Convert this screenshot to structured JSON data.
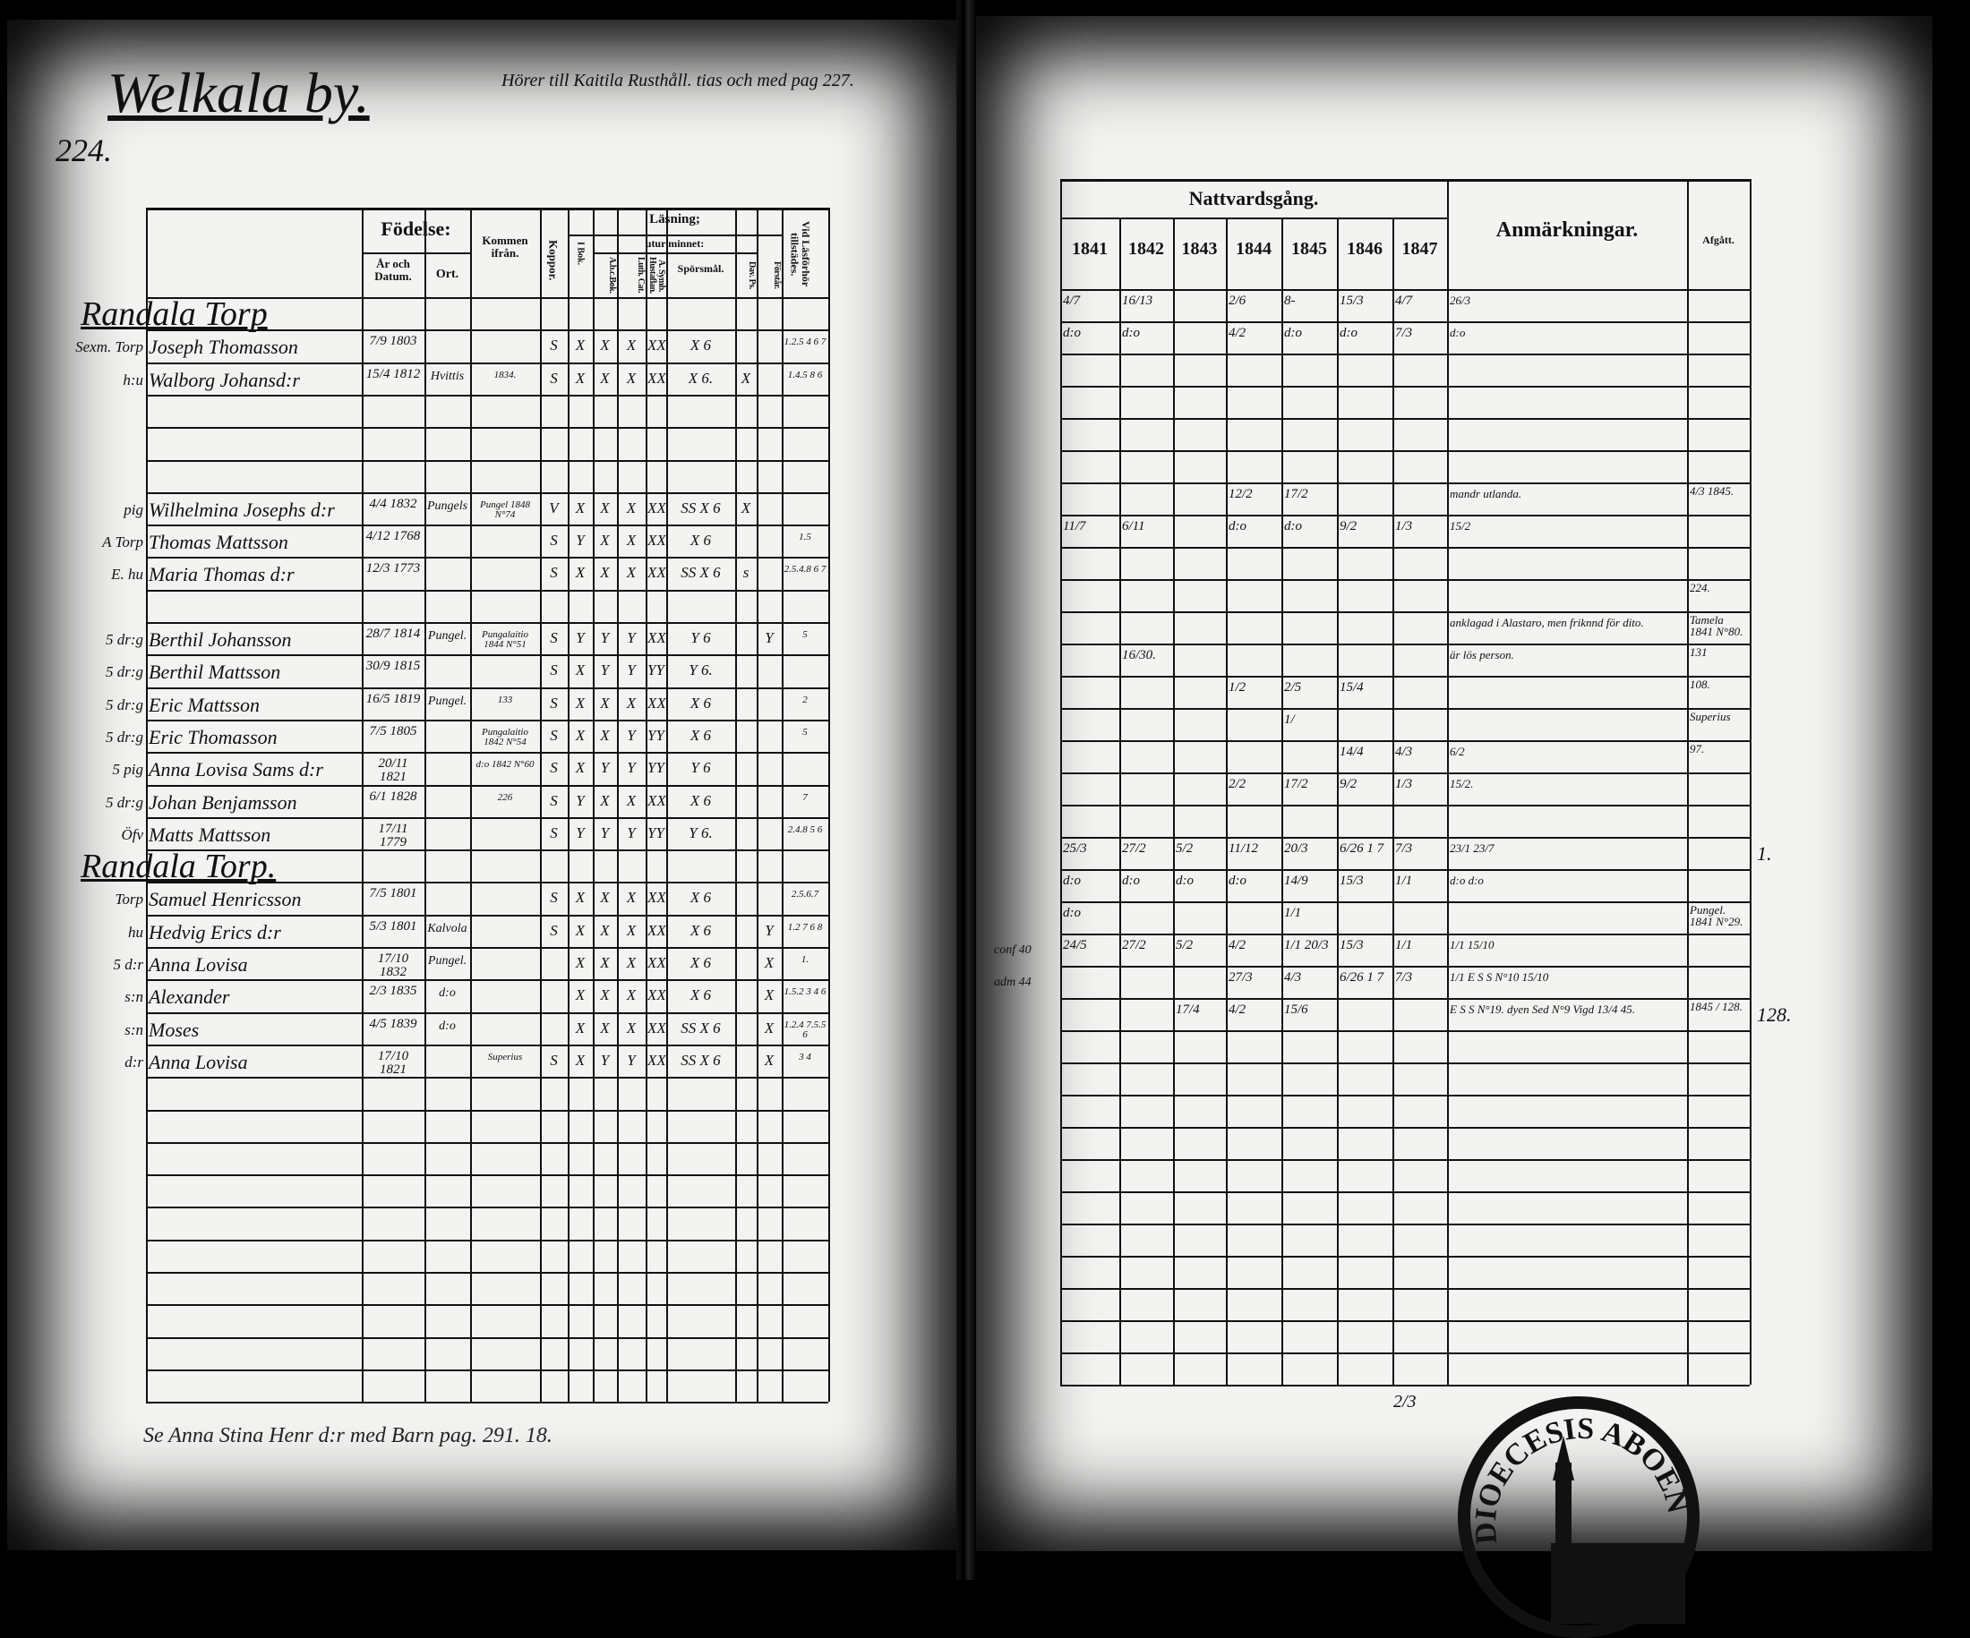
{
  "left_page": {
    "title": "Welkala by.",
    "note": "Hörer till Kaitila Rusthåll. tias och med pag 227.",
    "page_number": "224.",
    "footer_note": "Se Anna Stina Henr d:r med Barn pag. 291. 18.",
    "headers": {
      "fodelse": "Födelse:",
      "ar_och_datum": "År och Datum.",
      "ort": "Ort.",
      "kommen_fran": "Kommen ifrån.",
      "koppor": "Koppor.",
      "lasning": "Läsning;",
      "utur_minnet": "utur minnet:",
      "i_bok": "I Bok.",
      "abc_bok": "A.b.c.Bok.",
      "luth_cat": "Luth. Cat.",
      "a_symb": "A. Symb. Hustaflan.",
      "sporsmal": "Spörsmål.",
      "dav_ps": "Dav. Ps.",
      "forstar": "Förstår.",
      "vid_lasforhor": "Vid Läsförhör tillstädes."
    },
    "rows": [
      {
        "row": 0,
        "heading": "Randala Torp"
      },
      {
        "row": 1,
        "margin": "Sexm.  Torp",
        "name": "Joseph Thomasson",
        "date": "7/9 1803",
        "koppor": "S",
        "ibok": "X",
        "abc": "X",
        "luth": "X",
        "symb": "XX",
        "spors": "X 6",
        "vid": "1.2.5 4 6 7"
      },
      {
        "row": 2,
        "margin": "h:u",
        "name": "Walborg Johansd:r",
        "date": "15/4 1812",
        "ort": "Hvittis",
        "from": "1834.",
        "koppor": "S",
        "ibok": "X",
        "abc": "X",
        "luth": "X",
        "symb": "XX",
        "spors": "X 6.",
        "dav": "X",
        "vid": "1.4.5 8 6"
      },
      {
        "row": 6,
        "margin": "pig",
        "name": "Wilhelmina Josephs d:r",
        "date": "4/4 1832",
        "ort": "Pungels",
        "from": "Pungel 1848 N°74",
        "koppor": "V",
        "ibok": "X",
        "abc": "X",
        "luth": "X",
        "symb": "XX",
        "spors": "SS X 6",
        "dav": "X"
      },
      {
        "row": 7,
        "margin": "A Torp",
        "name": "Thomas Mattsson",
        "date": "4/12 1768",
        "koppor": "S",
        "ibok": "Y",
        "abc": "X",
        "luth": "X",
        "symb": "XX",
        "spors": "X 6",
        "vid": "1.5"
      },
      {
        "row": 8,
        "margin": "E. hu",
        "name": "Maria Thomas d:r",
        "date": "12/3 1773",
        "koppor": "S",
        "ibok": "X",
        "abc": "X",
        "luth": "X",
        "symb": "XX",
        "spors": "SS X 6",
        "dav": "s",
        "vid": "2.5.4.8 6 7"
      },
      {
        "row": 10,
        "margin": "5 dr:g",
        "name": "Berthil Johansson",
        "date": "28/7 1814",
        "ort": "Pungel.",
        "from": "Pungalaitio 1844 N°51",
        "koppor": "S",
        "ibok": "Y",
        "abc": "Y",
        "luth": "Y",
        "symb": "XX",
        "spors": "Y 6",
        "forst": "Y",
        "vid": "5"
      },
      {
        "row": 11,
        "margin": "5 dr:g",
        "name": "Berthil Mattsson",
        "date": "30/9 1815",
        "koppor": "S",
        "ibok": "X",
        "abc": "Y",
        "luth": "Y",
        "symb": "YY",
        "spors": "Y 6."
      },
      {
        "row": 12,
        "margin": "5 dr:g",
        "name": "Eric Mattsson",
        "date": "16/5 1819",
        "ort": "Pungel.",
        "from": "133",
        "koppor": "S",
        "ibok": "X",
        "abc": "X",
        "luth": "X",
        "symb": "XX",
        "spors": "X 6",
        "vid": "2"
      },
      {
        "row": 13,
        "margin": "5 dr:g",
        "name": "Eric Thomasson",
        "date": "7/5 1805",
        "from": "Pungalaitio 1842 N°54",
        "koppor": "S",
        "ibok": "X",
        "abc": "X",
        "luth": "Y",
        "symb": "YY",
        "spors": "X 6",
        "vid": "5"
      },
      {
        "row": 14,
        "margin": "5 pig",
        "name": "Anna Lovisa Sams d:r",
        "date": "20/11 1821",
        "from": "d:o 1842 N°60",
        "koppor": "S",
        "ibok": "X",
        "abc": "Y",
        "luth": "Y",
        "symb": "YY",
        "spors": "Y 6"
      },
      {
        "row": 15,
        "margin": "5 dr:g",
        "name": "Johan Benjamsson",
        "date": "6/1 1828",
        "from": "226",
        "koppor": "S",
        "ibok": "Y",
        "abc": "X",
        "luth": "X",
        "symb": "XX",
        "spors": "X 6",
        "vid": "7"
      },
      {
        "row": 16,
        "margin": "Öfv",
        "name": "Matts Mattsson",
        "date": "17/11 1779",
        "koppor": "S",
        "ibok": "Y",
        "abc": "Y",
        "luth": "Y",
        "symb": "YY",
        "spors": "Y 6.",
        "vid": "2.4.8 5 6"
      },
      {
        "row": 17,
        "heading": "Randala Torp."
      },
      {
        "row": 18,
        "margin": "Torp",
        "name": "Samuel Henricsson",
        "date": "7/5 1801",
        "koppor": "S",
        "ibok": "X",
        "abc": "X",
        "luth": "X",
        "symb": "XX",
        "spors": "X 6",
        "vid": "2.5.6.7"
      },
      {
        "row": 19,
        "margin": "hu",
        "name": "Hedvig Erics d:r",
        "date": "5/3 1801",
        "ort": "Kalvola",
        "koppor": "S",
        "ibok": "X",
        "abc": "X",
        "luth": "X",
        "symb": "XX",
        "spors": "X 6",
        "forst": "Y",
        "vid": "1.2 7 6 8"
      },
      {
        "row": 20,
        "margin": "5 d:r",
        "name": "Anna Lovisa",
        "date": "17/10 1832",
        "ort": "Pungel.",
        "ibok": "X",
        "abc": "X",
        "luth": "X",
        "symb": "XX",
        "spors": "X 6",
        "forst": "X",
        "vid": "1."
      },
      {
        "row": 21,
        "margin": "s:n",
        "name": "Alexander",
        "date": "2/3 1835",
        "ort": "d:o",
        "ibok": "X",
        "abc": "X",
        "luth": "X",
        "symb": "XX",
        "spors": "X 6",
        "forst": "X",
        "vid": "1.5.2 3 4 6"
      },
      {
        "row": 22,
        "margin": "s:n",
        "name": "Moses",
        "date": "4/5 1839",
        "ort": "d:o",
        "ibok": "X",
        "abc": "X",
        "luth": "X",
        "symb": "XX",
        "spors": "SS X 6",
        "forst": "X",
        "vid": "1.2.4 7.5.5 6"
      },
      {
        "row": 23,
        "margin": "d:r",
        "name": "Anna Lovisa",
        "date": "17/10 1821",
        "from": "Superius",
        "koppor": "S",
        "ibok": "X",
        "abc": "Y",
        "luth": "Y",
        "symb": "XX",
        "spors": "SS X 6",
        "forst": "X",
        "vid": "3 4"
      }
    ]
  },
  "right_page": {
    "headers": {
      "nattvardsgang": "Nattvardsgång.",
      "years": [
        "1841",
        "1842",
        "1843",
        "1844",
        "1845",
        "1846",
        "1847"
      ],
      "anmarkningar": "Anmärkningar.",
      "afgatt": "Afgått."
    },
    "rows": [
      {
        "row": 0,
        "y41": "4/7",
        "y42": "16/13",
        "y44": "2/6",
        "y45": "8-",
        "y46": "15/3",
        "y47": "4/7",
        "anm": "26/3"
      },
      {
        "row": 1,
        "y41": "d:o",
        "y42": "d:o",
        "y44": "4/2",
        "y45": "d:o",
        "y46": "d:o",
        "y47": "7/3",
        "anm": "d:o"
      },
      {
        "row": 6,
        "y44": "12/2",
        "y45": "17/2",
        "anm": "mandr utlanda.",
        "afg": "4/3 1845."
      },
      {
        "row": 7,
        "y41": "11/7",
        "y42": "6/11",
        "y44": "d:o",
        "y45": "d:o",
        "y46": "9/2",
        "y47": "1/3",
        "anm": "15/2"
      },
      {
        "row": 9,
        "afg": "224."
      },
      {
        "row": 10,
        "anm": "anklagad i Alastaro, men friknnd för dito.",
        "afg": "Tamela 1841 N°80."
      },
      {
        "row": 11,
        "y42": "16/30.",
        "anm": "är lös person.",
        "afg": "131"
      },
      {
        "row": 12,
        "y44": "1/2",
        "y45": "2/5",
        "y46": "15/4",
        "afg": "108."
      },
      {
        "row": 13,
        "y45": "1/",
        "afg": "Superius"
      },
      {
        "row": 14,
        "y46": "14/4",
        "y47": "4/3",
        "anm": "6/2",
        "afg": "97."
      },
      {
        "row": 15,
        "y44": "2/2",
        "y45": "17/2",
        "y46": "9/2",
        "y47": "1/3",
        "anm": "15/2."
      },
      {
        "row": 17,
        "y41": "25/3",
        "y42": "27/2",
        "y43": "5/2",
        "y44": "11/12",
        "y45": "20/3",
        "y46": "6/26 1 7",
        "y47": "7/3",
        "anm": "23/1 23/7",
        "outside": "1."
      },
      {
        "row": 18,
        "y41": "d:o",
        "y42": "d:o",
        "y43": "d:o",
        "y44": "d:o",
        "y45": "14/9",
        "y46": "15/3",
        "y47": "1/1",
        "anm": "d:o d:o"
      },
      {
        "row": 19,
        "y41": "d:o",
        "y45": "1/1",
        "afg": "Pungel. 1841 N°29."
      },
      {
        "row": 20,
        "margin": "conf 40",
        "y41": "24/5",
        "y42": "27/2",
        "y43": "5/2",
        "y44": "4/2",
        "y45": "1/1 20/3",
        "y46": "15/3",
        "y47": "1/1",
        "anm": "1/1 15/10"
      },
      {
        "row": 21,
        "margin": "adm 44",
        "y44": "27/3",
        "y45": "4/3",
        "y46": "6/26 1 7",
        "y47": "7/3",
        "anm": "1/1 E S S N°10 15/10"
      },
      {
        "row": 22,
        "y43": "17/4",
        "y44": "4/2",
        "y45": "15/6",
        "anm": "E S S N°19. dyen Sed N°9  Vigd 13/4 45.",
        "afg": "1845 / 128.",
        "outside": "128."
      }
    ],
    "footer_mark": "2/3",
    "stamp_text": "DIOECESIS ABOEN"
  }
}
